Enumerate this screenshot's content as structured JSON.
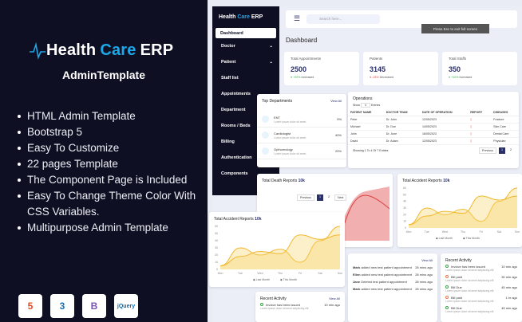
{
  "promo": {
    "brand_a": "Health",
    "brand_b": "Care",
    "brand_c": "ERP",
    "subtitle": "AdminTemplate",
    "features": [
      "HTML Admin Template",
      "Bootstrap 5",
      "Easy To Customize",
      "22 pages Template",
      "The Component Page is Included",
      "Easy To Change Theme Color With CSS Variables.",
      "Multipurpose Admin Template"
    ],
    "tech": [
      {
        "label": "5",
        "icon": "html5-icon",
        "color": "#e44d26"
      },
      {
        "label": "3",
        "icon": "css3-icon",
        "color": "#1572b6"
      },
      {
        "label": "B",
        "icon": "bootstrap-icon",
        "color": "#7952b3"
      },
      {
        "label": "jQuery",
        "icon": "jquery-icon",
        "color": "#0769ad"
      }
    ]
  },
  "app": {
    "brand_a": "Health",
    "brand_b": "Care",
    "brand_c": "ERP",
    "search_placeholder": "Search here...",
    "esc_notice": "Press Esc to exit full screen",
    "page_title": "Dashboard",
    "sidebar": [
      "Dashboard",
      "Doctor",
      "Patient",
      "Staff list",
      "Appointments",
      "Department",
      "Rooms / Beds",
      "Billing",
      "Authentication",
      "Components"
    ],
    "stats": [
      {
        "label": "Total Appointments",
        "value": "2500",
        "change": "+20%",
        "trend": "Increased",
        "color": "#3aa64a"
      },
      {
        "label": "Patients",
        "value": "3145",
        "change": "-15%",
        "trend": "Decreased",
        "color": "#e03b3b"
      },
      {
        "label": "Total Staffs",
        "value": "350",
        "change": "+10%",
        "trend": "Increased",
        "color": "#3aa64a"
      }
    ],
    "departments": {
      "title": "Top Departments",
      "view_all": "View All",
      "items": [
        {
          "name": "ENT",
          "desc": "Lorem ipsum dolor sit amet.",
          "pct": "5%"
        },
        {
          "name": "Cardiologist",
          "desc": "Lorem ipsum dolor sit amet.",
          "pct": "40%"
        },
        {
          "name": "Opthomology",
          "desc": "Lorem ipsum dolor sit amet.",
          "pct": "20%"
        }
      ]
    },
    "operations": {
      "title": "Operations",
      "show": "Show",
      "entries": "Entries",
      "count": "4",
      "headers": [
        "PATIENT NAME",
        "DOCTOR TEAM",
        "DATE OF OPERATION",
        "REPORT",
        "DISEASES"
      ],
      "rows": [
        [
          "Peter",
          "Dr. John",
          "12/05/2023",
          "",
          "Fracture"
        ],
        [
          "Michael",
          "Dr. Doe",
          "14/05/2023",
          "",
          "Skin Care"
        ],
        [
          "John",
          "Dr. June",
          "16/05/2023",
          "",
          "Dental Care"
        ],
        [
          "David",
          "Dr. Adam",
          "12/05/2023",
          "",
          "Physician"
        ]
      ],
      "footer": "Showing 1 To 4 Of 7 Entries",
      "prev": "Previous",
      "pages": [
        "1",
        "2"
      ]
    },
    "death": {
      "title": "Total Death Reports",
      "badge": "10k",
      "prev": "Previous",
      "pages": [
        "1",
        "2"
      ],
      "next": "Next"
    },
    "accident": {
      "title": "Total Accident Reports",
      "badge": "10k",
      "days": [
        "Mon",
        "Tue",
        "Wed",
        "Thu",
        "Fri",
        "Sat",
        "Sun"
      ],
      "yticks": [
        0,
        10,
        20,
        30,
        40,
        50,
        60
      ],
      "series": [
        {
          "name": "Last Month",
          "values": [
            5,
            30,
            20,
            28,
            10,
            40,
            60
          ]
        },
        {
          "name": "This Month",
          "values": [
            5,
            18,
            25,
            22,
            48,
            42,
            48
          ]
        }
      ]
    },
    "activity": {
      "title": "Recent Activity",
      "view_all": "View All",
      "items": [
        {
          "t": "Invoice has been issued",
          "d": "Lorem ipsum dolor sit amet adipiscing elit",
          "time": "10 min ago",
          "c": "#3aa64a"
        },
        {
          "t": "Bill paid",
          "d": "Lorem ipsum dolor sit amet adipiscing elit",
          "time": "30 min ago",
          "c": "#f07a4a"
        },
        {
          "t": "Bill Due",
          "d": "Lorem ipsum dolor sit amet adipiscing elit",
          "time": "45 min ago",
          "c": "#3aa64a"
        },
        {
          "t": "Bill paid",
          "d": "Lorem ipsum dolor sit amet adipiscing elit",
          "time": "1 hr ago",
          "c": "#f07a4a"
        },
        {
          "t": "Bill Due",
          "d": "Lorem ipsum dolor sit amet adipiscing elit",
          "time": "45 min ago",
          "c": "#3aa64a"
        }
      ]
    },
    "appointments": {
      "view_all": "View All",
      "items": [
        {
          "n": "Mark",
          "t": "added new test patient appointment",
          "time": "28 mins ago"
        },
        {
          "n": "Ellen",
          "t": "added new test patient appointment",
          "time": "28 mins ago"
        },
        {
          "n": "Jane",
          "t": "Deleted test patient appointment",
          "time": "28 mins ago"
        },
        {
          "n": "Mark",
          "t": "added new test patient appointment",
          "time": "28 mins ago"
        }
      ]
    }
  }
}
